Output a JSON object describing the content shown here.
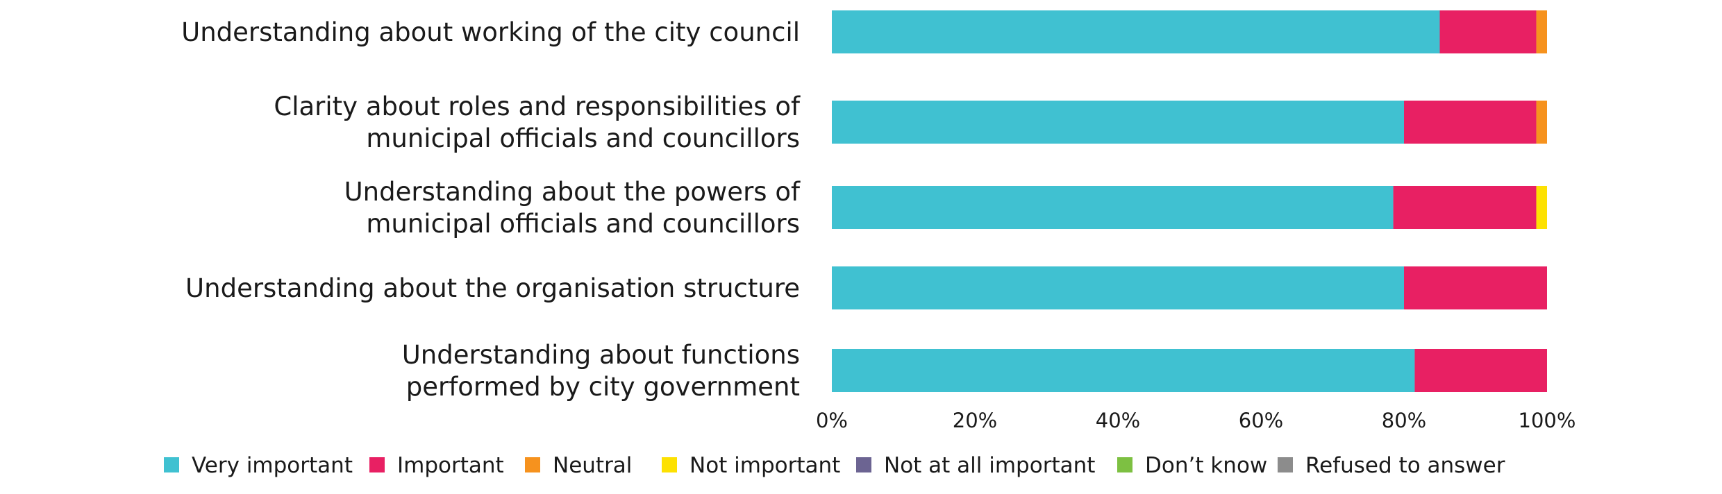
{
  "chart_data": {
    "type": "bar",
    "orientation": "horizontal",
    "stacked": true,
    "categories": [
      "Understanding about working of the city council",
      "Clarity about roles and responsibilities of municipal officials and councillors",
      "Understanding about the powers of municipal officials and councillors",
      "Understanding about the organisation structure",
      "Understanding about functions performed by city government"
    ],
    "category_lines": [
      [
        "Understanding about working of the city council"
      ],
      [
        "Clarity about roles and responsibilities of",
        "municipal officials and councillors"
      ],
      [
        "Understanding about the powers of",
        "municipal officials and councillors"
      ],
      [
        "Understanding about the organisation structure"
      ],
      [
        "Understanding about functions",
        "performed by city government"
      ]
    ],
    "series": [
      {
        "name": "Very important",
        "color": "#40C1D1",
        "values": [
          85,
          80,
          78.5,
          80,
          81.5
        ]
      },
      {
        "name": "Important",
        "color": "#E82063",
        "values": [
          13.5,
          18.5,
          20,
          20,
          18.5
        ]
      },
      {
        "name": "Neutral",
        "color": "#F6921E",
        "values": [
          1.5,
          1.5,
          0,
          0,
          0
        ]
      },
      {
        "name": "Not important",
        "color": "#FDE102",
        "values": [
          0,
          0,
          1.5,
          0,
          0
        ]
      },
      {
        "name": "Not at all important",
        "color": "#6C6492",
        "values": [
          0,
          0,
          0,
          0,
          0
        ]
      },
      {
        "name": "Don’t know",
        "color": "#7DC042",
        "values": [
          0,
          0,
          0,
          0,
          0
        ]
      },
      {
        "name": "Refused to answer",
        "color": "#8C8C8C",
        "values": [
          0,
          0,
          0,
          0,
          0
        ]
      }
    ],
    "x_ticks": [
      0,
      20,
      40,
      60,
      80,
      100
    ],
    "x_tick_labels": [
      "0%",
      "20%",
      "40%",
      "60%",
      "80%",
      "100%"
    ],
    "xlim": [
      0,
      100
    ],
    "title": "",
    "xlabel": "",
    "ylabel": "",
    "grid": false,
    "legend_position": "bottom"
  }
}
